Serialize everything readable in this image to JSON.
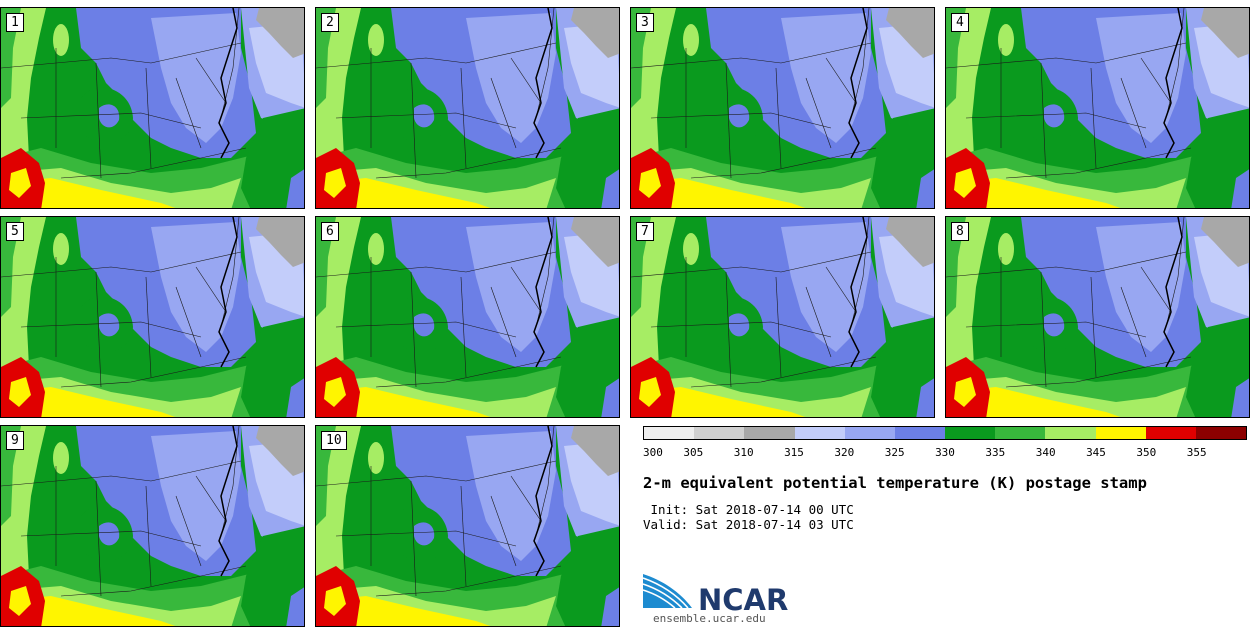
{
  "panels": [
    {
      "label": "1"
    },
    {
      "label": "2"
    },
    {
      "label": "3"
    },
    {
      "label": "4"
    },
    {
      "label": "5"
    },
    {
      "label": "6"
    },
    {
      "label": "7"
    },
    {
      "label": "8"
    },
    {
      "label": "9"
    },
    {
      "label": "10"
    }
  ],
  "colorbar": {
    "ticks": [
      "300",
      "305",
      "310",
      "315",
      "320",
      "325",
      "330",
      "335",
      "340",
      "345",
      "350",
      "355"
    ],
    "colors": [
      "#eeeeee",
      "#d0d0d0",
      "#a8a8a8",
      "#c3cdfa",
      "#98a7f2",
      "#6c7fe6",
      "#0a9a1e",
      "#38b83c",
      "#a6ed64",
      "#fff500",
      "#e00000",
      "#8c0000"
    ]
  },
  "legend": {
    "title": "2-m equivalent potential temperature (K) postage stamp",
    "init": " Init: Sat 2018-07-14 00 UTC",
    "valid": "Valid: Sat 2018-07-14 03 UTC"
  },
  "logo": {
    "name": "NCAR",
    "url": "ensemble.ucar.edu",
    "color_primary": "#1f3a6d",
    "color_accent": "#1d8bd0"
  },
  "map_colors": {
    "grey": "#a8a8a8",
    "light_blue": "#c3cdfa",
    "blue": "#6c7fe6",
    "mid_blue": "#98a7f2",
    "dark_green": "#0a9a1e",
    "green": "#38b83c",
    "light_green": "#a6ed64",
    "yellow": "#fff500",
    "red": "#e00000"
  }
}
